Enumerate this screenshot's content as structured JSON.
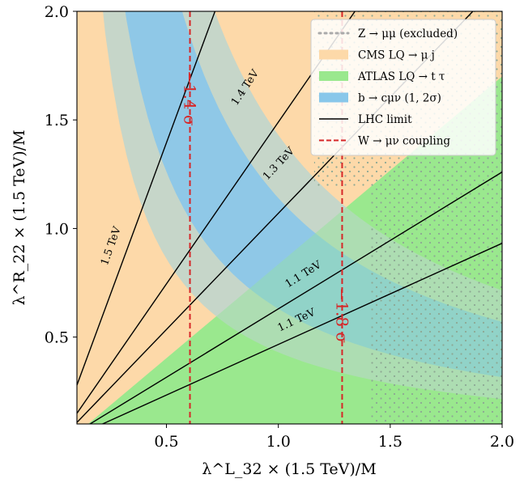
{
  "chart_data": {
    "type": "area",
    "xlabel": "λ^L_32 × (1.5 TeV)/M",
    "ylabel": "λ^R_22 × (1.5 TeV)/M",
    "xlim": [
      0.1,
      2.0
    ],
    "ylim": [
      0.1,
      2.0
    ],
    "xticks": [
      "0.5",
      "1.0",
      "1.5",
      "2.0"
    ],
    "yticks": [
      "0.5",
      "1.0",
      "1.5",
      "2.0"
    ],
    "legend_position": "top-right",
    "colors": {
      "cms": "#fdd9a9",
      "atlas": "#9ae88e",
      "bcmunu": "#88c7ea",
      "overlap": "#bcd5cf",
      "z_hatch": "#8da894",
      "lhc": "#000000",
      "w_coupling": "#d62728"
    },
    "legend": [
      {
        "key": "z",
        "label": "Z → μμ (excluded)"
      },
      {
        "key": "cms",
        "label": "CMS LQ → μ j"
      },
      {
        "key": "atlas",
        "label": "ATLAS LQ → t τ"
      },
      {
        "key": "bc",
        "label": "b → cμν (1, 2σ)"
      },
      {
        "key": "lhc",
        "label": "LHC limit"
      },
      {
        "key": "w",
        "label": "W → μν coupling"
      }
    ],
    "bands": {
      "b_to_c_mu_nu": {
        "outer_2sigma": {
          "inner_product": 0.43,
          "outer_product": 1.43
        },
        "inner_1sigma": {
          "inner_product": 0.63,
          "outer_product": 1.14
        }
      },
      "cms_region": {
        "boundary_from": [
          0.1,
          0.3
        ],
        "boundary_to": [
          1.4,
          2.0
        ]
      },
      "atlas_region": {
        "boundary_from": [
          0.15,
          0.1
        ],
        "boundary_to": [
          2.0,
          1.7
        ]
      },
      "z_excluded": [
        {
          "x_from": 1.41,
          "x_to": 2.0,
          "y_from": 0.1,
          "y_to": 1.19
        },
        {
          "x_from": 1.16,
          "x_to": 2.0,
          "y_from": 1.19,
          "y_to": 2.0
        }
      ]
    },
    "lhc_limits": [
      {
        "label": "1.5 TeV",
        "slope": 2.79,
        "label_at": [
          0.25,
          0.92
        ]
      },
      {
        "label": "1.4 TeV",
        "slope": 1.49,
        "label_at": [
          0.85,
          1.65
        ]
      },
      {
        "label": "1.3 TeV",
        "slope": 1.07,
        "label_at": [
          1.0,
          1.3
        ]
      },
      {
        "label": "1.1 TeV",
        "slope": 0.63,
        "label_at": [
          1.11,
          0.79
        ]
      },
      {
        "label": "1.1 TeV",
        "slope": 0.466,
        "label_at": [
          1.08,
          0.58
        ]
      }
    ],
    "w_coupling": [
      {
        "x": 0.605,
        "label": "−1.4 σ"
      },
      {
        "x": 1.285,
        "label": "−1.8 σ"
      }
    ]
  }
}
